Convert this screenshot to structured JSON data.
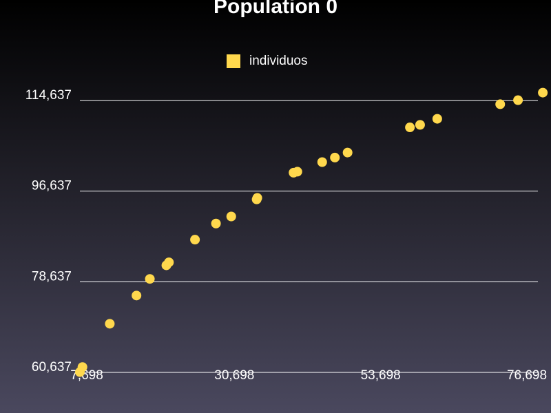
{
  "chart_data": {
    "type": "scatter",
    "title": "Population 0",
    "xlabel": "",
    "ylabel": "",
    "legend": {
      "position": "top-center"
    },
    "grid": {
      "horizontal": true,
      "vertical": false
    },
    "xlim": [
      7698,
      77698
    ],
    "ylim": [
      60637,
      114637
    ],
    "xticks": [
      7698,
      30698,
      53698,
      76698
    ],
    "xtick_labels": [
      "7,698",
      "30,698",
      "53,698",
      "76,698"
    ],
    "yticks": [
      60637,
      78637,
      96637,
      114637
    ],
    "ytick_labels": [
      "60,637",
      "78,637",
      "96,637",
      "114,637"
    ],
    "series": [
      {
        "name": "individuos",
        "color": "#ffd84d",
        "marker": "circle",
        "points": [
          {
            "x": 7698,
            "y": 60700
          },
          {
            "x": 8100,
            "y": 61700
          },
          {
            "x": 12400,
            "y": 70300
          },
          {
            "x": 16600,
            "y": 75900
          },
          {
            "x": 18700,
            "y": 79200
          },
          {
            "x": 21300,
            "y": 81900
          },
          {
            "x": 21700,
            "y": 82500
          },
          {
            "x": 25800,
            "y": 87000
          },
          {
            "x": 29100,
            "y": 90200
          },
          {
            "x": 31500,
            "y": 91600
          },
          {
            "x": 35500,
            "y": 95000
          },
          {
            "x": 35600,
            "y": 95300
          },
          {
            "x": 41300,
            "y": 100300
          },
          {
            "x": 41900,
            "y": 100500
          },
          {
            "x": 45800,
            "y": 102400
          },
          {
            "x": 47800,
            "y": 103300
          },
          {
            "x": 49800,
            "y": 104300
          },
          {
            "x": 59600,
            "y": 109300
          },
          {
            "x": 61200,
            "y": 109800
          },
          {
            "x": 63900,
            "y": 111000
          },
          {
            "x": 73800,
            "y": 113900
          },
          {
            "x": 76600,
            "y": 114700
          },
          {
            "x": 80500,
            "y": 116200
          }
        ]
      }
    ]
  }
}
